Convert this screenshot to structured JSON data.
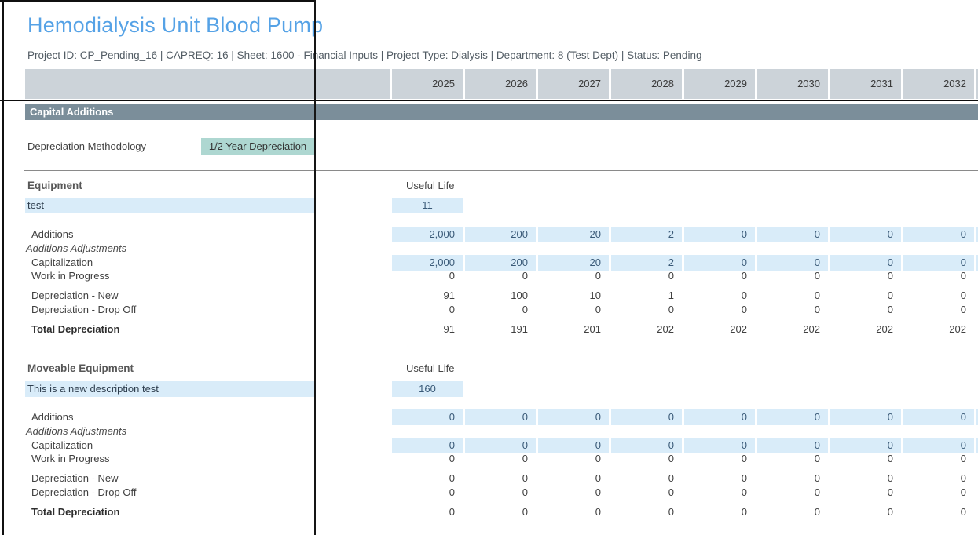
{
  "header": {
    "title": "Hemodialysis Unit Blood Pump",
    "subtitle": "Project ID: CP_Pending_16 | CAPREQ: 16 | Sheet: 1600 - Financial Inputs | Project Type: Dialysis | Department: 8 (Test Dept) | Status: Pending"
  },
  "columns": {
    "years": [
      "2025",
      "2026",
      "2027",
      "2028",
      "2029",
      "2030",
      "2031",
      "2032",
      ""
    ]
  },
  "capital_additions": {
    "bar_label": "Capital Additions",
    "methodology_label": "Depreciation Methodology",
    "methodology_value": "1/2 Year Depreciation"
  },
  "sections": [
    {
      "heading": "Equipment",
      "useful_life_label": "Useful Life",
      "description": "test",
      "useful_life_value": "11",
      "rows": [
        {
          "label": "Additions",
          "values": [
            "2,000",
            "200",
            "20",
            "2",
            "0",
            "0",
            "0",
            "0",
            ""
          ]
        },
        {
          "label": "Additions Adjustments"
        },
        {
          "label": "Capitalization",
          "values": [
            "2,000",
            "200",
            "20",
            "2",
            "0",
            "0",
            "0",
            "0",
            ""
          ]
        },
        {
          "label": "Work in Progress",
          "values": [
            "0",
            "0",
            "0",
            "0",
            "0",
            "0",
            "0",
            "0"
          ]
        },
        {
          "label": "Depreciation - New",
          "values": [
            "91",
            "100",
            "10",
            "1",
            "0",
            "0",
            "0",
            "0"
          ]
        },
        {
          "label": "Depreciation - Drop Off",
          "values": [
            "0",
            "0",
            "0",
            "0",
            "0",
            "0",
            "0",
            "0"
          ]
        },
        {
          "label": "Total Depreciation",
          "values": [
            "91",
            "191",
            "201",
            "202",
            "202",
            "202",
            "202",
            "202"
          ]
        }
      ]
    },
    {
      "heading": "Moveable Equipment",
      "useful_life_label": "Useful Life",
      "description": "This is a new description test",
      "useful_life_value": "160",
      "rows": [
        {
          "label": "Additions",
          "values": [
            "0",
            "0",
            "0",
            "0",
            "0",
            "0",
            "0",
            "0",
            ""
          ]
        },
        {
          "label": "Additions Adjustments"
        },
        {
          "label": "Capitalization",
          "values": [
            "0",
            "0",
            "0",
            "0",
            "0",
            "0",
            "0",
            "0",
            ""
          ]
        },
        {
          "label": "Work in Progress",
          "values": [
            "0",
            "0",
            "0",
            "0",
            "0",
            "0",
            "0",
            "0"
          ]
        },
        {
          "label": "Depreciation - New",
          "values": [
            "0",
            "0",
            "0",
            "0",
            "0",
            "0",
            "0",
            "0"
          ]
        },
        {
          "label": "Depreciation - Drop Off",
          "values": [
            "0",
            "0",
            "0",
            "0",
            "0",
            "0",
            "0",
            "0"
          ]
        },
        {
          "label": "Total Depreciation",
          "values": [
            "0",
            "0",
            "0",
            "0",
            "0",
            "0",
            "0",
            "0"
          ]
        }
      ]
    }
  ],
  "colors": {
    "title_accent": "#55a2e6",
    "section_bar": "#7b8e9a",
    "column_header_bg": "#ccd3d9",
    "input_cell_bg": "#d9ecf9",
    "methodology_cell_bg": "#aed7d1"
  }
}
